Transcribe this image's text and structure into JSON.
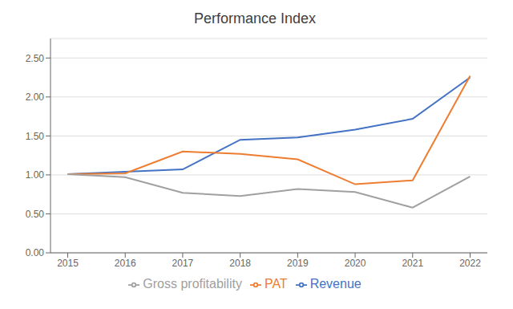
{
  "chart_data": {
    "type": "line",
    "title": "Performance Index",
    "x": [
      2015,
      2016,
      2017,
      2018,
      2019,
      2020,
      2021,
      2022
    ],
    "series": [
      {
        "name": "Revenue",
        "color": "#4472C4",
        "values": [
          1.01,
          1.04,
          1.07,
          1.45,
          1.48,
          1.58,
          1.72,
          2.25
        ]
      },
      {
        "name": "PAT",
        "color": "#ED7D31",
        "values": [
          1.01,
          1.02,
          1.3,
          1.27,
          1.2,
          0.88,
          0.93,
          2.27
        ]
      },
      {
        "name": "Gross profitability",
        "color": "#A0A0A0",
        "values": [
          1.01,
          0.97,
          0.77,
          0.73,
          0.82,
          0.78,
          0.58,
          0.98
        ]
      }
    ],
    "xlim": [
      2014.7,
      2022.3
    ],
    "xticks": [
      2015,
      2016,
      2017,
      2018,
      2019,
      2020,
      2021,
      2022
    ],
    "ylim": [
      0.0,
      2.75
    ],
    "yticks": [
      {
        "value": 0.0,
        "label": "0.00"
      },
      {
        "value": 0.5,
        "label": "0.50"
      },
      {
        "value": 1.0,
        "label": "1.00"
      },
      {
        "value": 1.5,
        "label": "1.50"
      },
      {
        "value": 2.0,
        "label": "2.00"
      },
      {
        "value": 2.5,
        "label": "2.50"
      }
    ],
    "grid": true,
    "legend": "bottom"
  }
}
